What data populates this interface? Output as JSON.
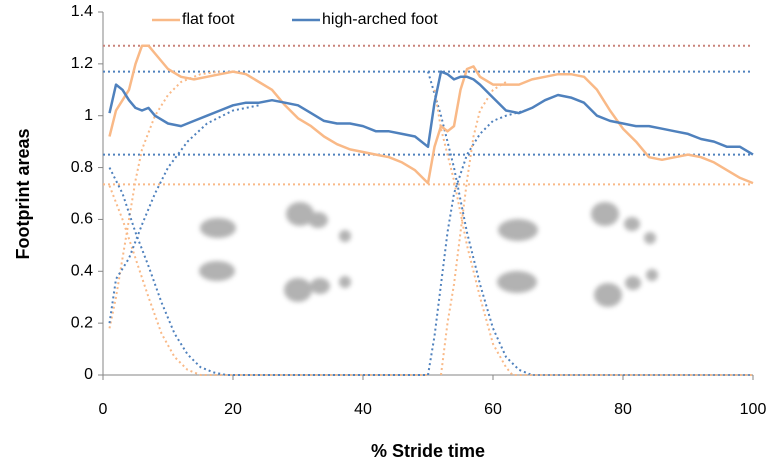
{
  "chart_data": {
    "type": "line",
    "x_label": "% Stride time",
    "y_label": "Footprint areas",
    "xlim": [
      0,
      100
    ],
    "xticks": [
      0,
      20,
      40,
      60,
      80,
      100
    ],
    "ylim": [
      0,
      1.4
    ],
    "yticks": [
      0,
      0.2,
      0.4,
      0.6,
      0.8,
      1,
      1.2,
      1.4
    ],
    "x": [
      1,
      2,
      3,
      4,
      5,
      6,
      7,
      8,
      10,
      12,
      14,
      16,
      18,
      20,
      22,
      24,
      26,
      28,
      30,
      32,
      34,
      36,
      38,
      40,
      42,
      44,
      46,
      48,
      50,
      51,
      52,
      53,
      54,
      55,
      56,
      57,
      58,
      60,
      62,
      64,
      66,
      68,
      70,
      72,
      74,
      76,
      78,
      80,
      82,
      84,
      86,
      88,
      90,
      92,
      94,
      96,
      98,
      100
    ],
    "series": [
      {
        "name": "flat foot",
        "color": "#f9b987",
        "values": [
          0.92,
          1.02,
          1.06,
          1.1,
          1.2,
          1.27,
          1.27,
          1.24,
          1.18,
          1.15,
          1.14,
          1.15,
          1.16,
          1.17,
          1.16,
          1.13,
          1.1,
          1.04,
          0.99,
          0.96,
          0.92,
          0.89,
          0.87,
          0.86,
          0.85,
          0.84,
          0.82,
          0.79,
          0.74,
          0.88,
          0.96,
          0.94,
          0.96,
          1.1,
          1.18,
          1.19,
          1.15,
          1.12,
          1.12,
          1.12,
          1.14,
          1.15,
          1.16,
          1.16,
          1.15,
          1.1,
          1.02,
          0.95,
          0.9,
          0.84,
          0.83,
          0.84,
          0.85,
          0.84,
          0.82,
          0.79,
          0.76,
          0.74
        ]
      },
      {
        "name": "high-arched foot",
        "color": "#4f81bd",
        "values": [
          1.01,
          1.12,
          1.1,
          1.06,
          1.03,
          1.02,
          1.03,
          1.0,
          0.97,
          0.96,
          0.98,
          1.0,
          1.02,
          1.04,
          1.05,
          1.05,
          1.06,
          1.05,
          1.04,
          1.01,
          0.98,
          0.97,
          0.97,
          0.96,
          0.94,
          0.94,
          0.93,
          0.92,
          0.88,
          1.05,
          1.17,
          1.16,
          1.14,
          1.15,
          1.15,
          1.14,
          1.12,
          1.07,
          1.02,
          1.01,
          1.03,
          1.06,
          1.08,
          1.07,
          1.05,
          1.0,
          0.98,
          0.97,
          0.96,
          0.96,
          0.95,
          0.94,
          0.93,
          0.91,
          0.9,
          0.88,
          0.88,
          0.85
        ]
      }
    ],
    "reference_lines": [
      {
        "value": 1.27,
        "color": "#c9837a"
      },
      {
        "value": 1.17,
        "color": "#4f81bd"
      },
      {
        "value": 0.85,
        "color": "#4f81bd"
      },
      {
        "value": 0.735,
        "color": "#f9b987"
      }
    ],
    "fit_curves": [
      {
        "color": "#f9b987",
        "x": [
          1,
          2,
          3,
          4,
          5,
          6,
          8,
          10,
          12,
          15,
          18
        ],
        "values": [
          0.18,
          0.3,
          0.45,
          0.6,
          0.75,
          0.87,
          1.0,
          1.08,
          1.13,
          1.16,
          1.17
        ]
      },
      {
        "color": "#f9b987",
        "x": [
          1,
          3,
          5,
          7,
          9,
          11,
          13,
          15,
          50
        ],
        "values": [
          0.73,
          0.6,
          0.45,
          0.3,
          0.16,
          0.07,
          0.02,
          0,
          0
        ]
      },
      {
        "color": "#4f81bd",
        "x": [
          1,
          2,
          4,
          6,
          8,
          10,
          13,
          16,
          20,
          24
        ],
        "values": [
          0.2,
          0.37,
          0.45,
          0.58,
          0.7,
          0.8,
          0.9,
          0.97,
          1.02,
          1.04
        ]
      },
      {
        "color": "#4f81bd",
        "x": [
          1,
          3,
          5,
          7,
          9,
          11,
          13,
          15,
          17,
          19,
          50
        ],
        "values": [
          0.8,
          0.7,
          0.55,
          0.42,
          0.28,
          0.16,
          0.08,
          0.03,
          0.01,
          0,
          0
        ]
      },
      {
        "color": "#4f81bd",
        "x": [
          50,
          51,
          52,
          53,
          54,
          56,
          58,
          60,
          62,
          65
        ],
        "values": [
          0,
          0.15,
          0.35,
          0.55,
          0.7,
          0.85,
          0.93,
          0.98,
          1.0,
          1.02
        ]
      },
      {
        "color": "#4f81bd",
        "x": [
          50,
          52,
          54,
          56,
          58,
          60,
          62,
          64,
          66,
          100
        ],
        "values": [
          1.17,
          1.0,
          0.8,
          0.55,
          0.35,
          0.18,
          0.07,
          0.02,
          0,
          0
        ]
      },
      {
        "color": "#f9b987",
        "x": [
          51,
          52,
          54,
          56,
          58,
          60,
          62,
          63,
          100
        ],
        "values": [
          1.1,
          0.95,
          0.75,
          0.5,
          0.3,
          0.12,
          0.03,
          0,
          0
        ]
      },
      {
        "color": "#f9b987",
        "x": [
          52,
          53,
          54,
          55,
          56,
          57,
          58,
          60,
          62
        ],
        "values": [
          0,
          0.2,
          0.35,
          0.55,
          0.75,
          0.92,
          1.02,
          1.1,
          1.13
        ]
      }
    ]
  }
}
